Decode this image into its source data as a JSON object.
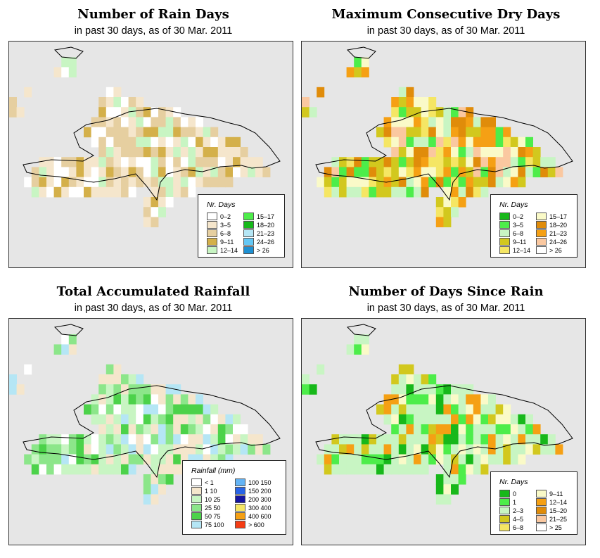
{
  "panels": [
    {
      "id": "rain-days",
      "title": "Number of Rain Days",
      "subtitle": "in past 30 days, as of  30 Mar. 2011",
      "legend_title": "Nr. Days",
      "legend": [
        {
          "label": "0–2",
          "color": "#ffffff"
        },
        {
          "label": "3–5",
          "color": "#f5e6cc"
        },
        {
          "label": "6–8",
          "color": "#e6cfa0"
        },
        {
          "label": "9–11",
          "color": "#d4b04a"
        },
        {
          "label": "12–14",
          "color": "#c8f5c3"
        },
        {
          "label": "15–17",
          "color": "#4ded4a"
        },
        {
          "label": "18–20",
          "color": "#17b81a"
        },
        {
          "label": "21–23",
          "color": "#b5e6f5"
        },
        {
          "label": "24–26",
          "color": "#64c8f5"
        },
        {
          "label": "> 26",
          "color": "#1e90d2"
        }
      ]
    },
    {
      "id": "max-dry-days",
      "title": "Maximum Consecutive Dry Days",
      "subtitle": "in past 30 days, as of  30 Mar. 2011",
      "legend_title": "Nr. Days",
      "legend": [
        {
          "label": "0–2",
          "color": "#17b81a"
        },
        {
          "label": "3–5",
          "color": "#4ded4a"
        },
        {
          "label": "6–8",
          "color": "#c8f5c3"
        },
        {
          "label": "9–11",
          "color": "#d2c81e"
        },
        {
          "label": "12–14",
          "color": "#f5e664"
        },
        {
          "label": "15–17",
          "color": "#fafac8"
        },
        {
          "label": "18–20",
          "color": "#e08c0a"
        },
        {
          "label": "21–23",
          "color": "#f5a014"
        },
        {
          "label": "24–26",
          "color": "#fac8a0"
        },
        {
          "label": "> 26",
          "color": "#ffffff"
        }
      ]
    },
    {
      "id": "total-rainfall",
      "title": "Total Accumulated Rainfall",
      "subtitle": "in past 30 days, as of  30 Mar. 2011",
      "legend_title": "Rainfall (mm)",
      "legend": [
        {
          "label": "< 1",
          "color": "#ffffff"
        },
        {
          "label": "1    10",
          "color": "#f5e6cc"
        },
        {
          "label": "10    25",
          "color": "#c8f5c3"
        },
        {
          "label": "25    50",
          "color": "#8ce68a"
        },
        {
          "label": "50    75",
          "color": "#4cd24a"
        },
        {
          "label": "75  100",
          "color": "#b5e6f5"
        },
        {
          "label": "100  150",
          "color": "#64b4f5"
        },
        {
          "label": "150  200",
          "color": "#2864e6"
        },
        {
          "label": "200  300",
          "color": "#1414a0"
        },
        {
          "label": "300  400",
          "color": "#f5e664"
        },
        {
          "label": "400  600",
          "color": "#f5a014"
        },
        {
          "label": "> 600",
          "color": "#f53c14"
        }
      ]
    },
    {
      "id": "days-since-rain",
      "title": "Number of Days Since Rain",
      "subtitle": "in past 30 days, as of  30 Mar. 2011",
      "legend_title": "Nr. Days",
      "legend": [
        {
          "label": "0",
          "color": "#17b81a"
        },
        {
          "label": "1",
          "color": "#4ded4a"
        },
        {
          "label": "2–3",
          "color": "#c8f5c3"
        },
        {
          "label": "4–5",
          "color": "#d2c81e"
        },
        {
          "label": "6–8",
          "color": "#f5e664"
        },
        {
          "label": "9–11",
          "color": "#fafac8"
        },
        {
          "label": "12–14",
          "color": "#f5a014"
        },
        {
          "label": "15–20",
          "color": "#e08c0a"
        },
        {
          "label": "21–25",
          "color": "#fac8a0"
        },
        {
          "label": "> 25",
          "color": "#ffffff"
        }
      ]
    }
  ]
}
